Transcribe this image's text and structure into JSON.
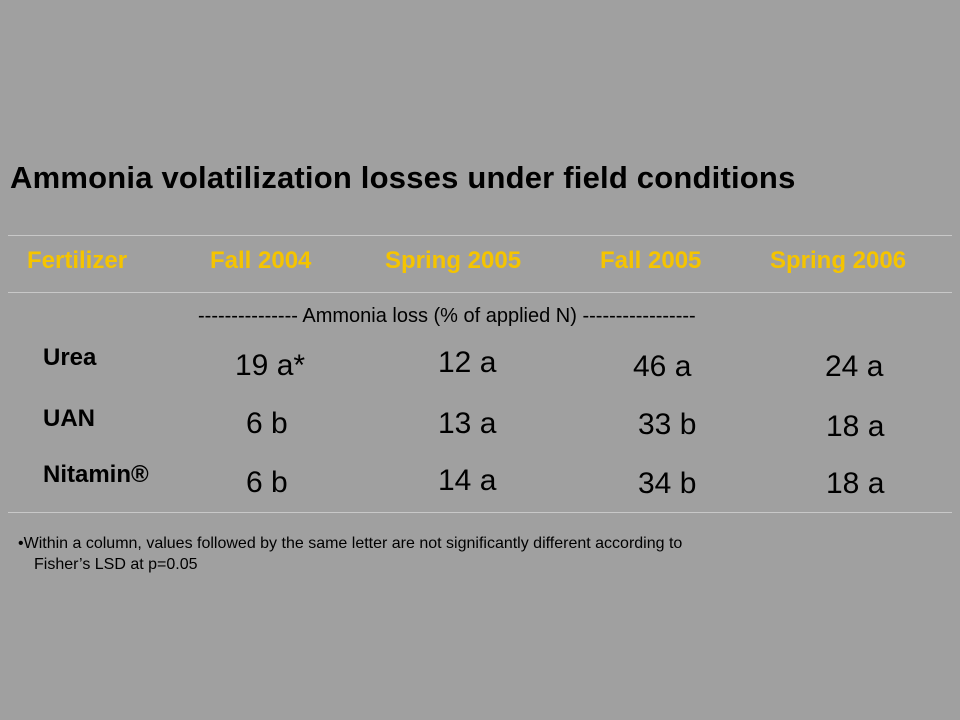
{
  "title": "Ammonia volatilization losses under field conditions",
  "colors": {
    "background": "#a0a0a0",
    "header_text": "#f5c400",
    "body_text": "#000000"
  },
  "table": {
    "headers": [
      "Fertilizer",
      "Fall 2004",
      "Spring 2005",
      "Fall 2005",
      "Spring 2006"
    ],
    "units_row": "--------------- Ammonia loss (% of applied N) -----------------",
    "rows": [
      {
        "label": "Urea",
        "values": [
          "19 a*",
          "12 a",
          "46 a",
          "24 a"
        ]
      },
      {
        "label": "UAN",
        "values": [
          "6 b",
          "13 a",
          "33 b",
          "18 a"
        ]
      },
      {
        "label": "Nitamin®",
        "values": [
          "6 b",
          "14 a",
          "34 b",
          "18 a"
        ]
      }
    ]
  },
  "footnote": {
    "line1": "•Within a column, values followed by the same letter are not significantly different  according to",
    "line2": "Fisher’s LSD at p=0.05"
  }
}
